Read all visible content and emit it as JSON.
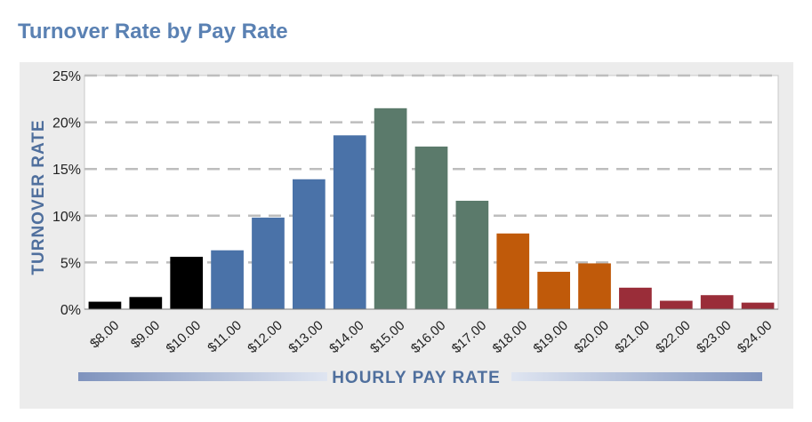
{
  "title": "Turnover Rate by Pay Rate",
  "chart_data": {
    "type": "bar",
    "title": "Turnover Rate by Pay Rate",
    "xlabel": "HOURLY PAY RATE",
    "ylabel": "TURNOVER RATE",
    "categories": [
      "$8.00",
      "$9.00",
      "$10.00",
      "$11.00",
      "$12.00",
      "$13.00",
      "$14.00",
      "$15.00",
      "$16.00",
      "$17.00",
      "$18.00",
      "$19.00",
      "$20.00",
      "$21.00",
      "$22.00",
      "$23.00",
      "$24.00"
    ],
    "values": [
      0.8,
      1.3,
      5.6,
      6.3,
      9.8,
      13.9,
      18.6,
      21.5,
      17.4,
      11.6,
      8.1,
      4.0,
      4.9,
      2.3,
      0.9,
      1.5,
      0.7
    ],
    "bar_colors": [
      "#000000",
      "#000000",
      "#000000",
      "#4a72a8",
      "#4a72a8",
      "#4a72a8",
      "#4a72a8",
      "#5b7a6b",
      "#5b7a6b",
      "#5b7a6b",
      "#c05a0a",
      "#c05a0a",
      "#c05a0a",
      "#9a2d39",
      "#9a2d39",
      "#9a2d39",
      "#9a2d39"
    ],
    "yticks": [
      "0%",
      "5%",
      "10%",
      "15%",
      "20%",
      "25%"
    ],
    "ytick_values": [
      0,
      5,
      10,
      15,
      20,
      25
    ],
    "ylim": [
      0,
      25
    ],
    "grid": true,
    "colors": {
      "title": "#5a81b3",
      "axis_label": "#4f6f9d",
      "grid": "#bdbdbd"
    }
  }
}
